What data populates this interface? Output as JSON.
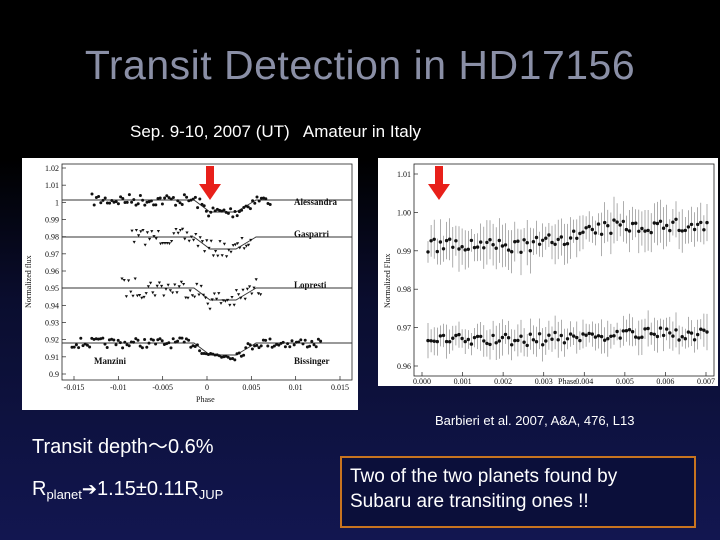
{
  "slide": {
    "title": "Transit Detection in HD17156",
    "subtitle": "Sep. 9-10, 2007 (UT)   Amateur in Italy",
    "citation": "Barbieri et al. 2007, A&A, 476, L13",
    "transit_depth": "Transit depth～0.6%",
    "rplanet": {
      "r": "R",
      "sub": "planet",
      "value": "1.15±0.11R",
      "sub2": "JUP"
    },
    "note_box": [
      "Two of the two planets found by",
      "Subaru are transiting ones !!"
    ],
    "colors": {
      "arrow": "#e8201a",
      "box_border": "#c8741f",
      "title": "#8a8fa6"
    }
  },
  "left_plot": {
    "ylabel": "Normalized flux",
    "xlabel": "Phase",
    "y_ticks": [
      "1.02",
      "1.01",
      "1",
      "0.99",
      "0.98",
      "0.97",
      "0.96",
      "0.95",
      "0.94",
      "0.93",
      "0.92",
      "0.91",
      "0.9"
    ],
    "x_ticks": [
      "-0.015",
      "-0.01",
      "-0.005",
      "0",
      "0.005",
      "0.01",
      "0.015"
    ],
    "observers": [
      "Alessandra",
      "Gasparri",
      "Lopresti",
      "Manzini",
      "Bissinger"
    ]
  },
  "right_plot": {
    "ylabel": "Normalized Flux",
    "xlabel": "Phase",
    "y_ticks": [
      "1.01",
      "1.00",
      "0.99",
      "0.98",
      "0.97",
      "0.96"
    ],
    "x_ticks": [
      "0.000",
      "0.001",
      "0.002",
      "0.003",
      "0.004",
      "0.005",
      "0.006",
      "0.007"
    ]
  }
}
